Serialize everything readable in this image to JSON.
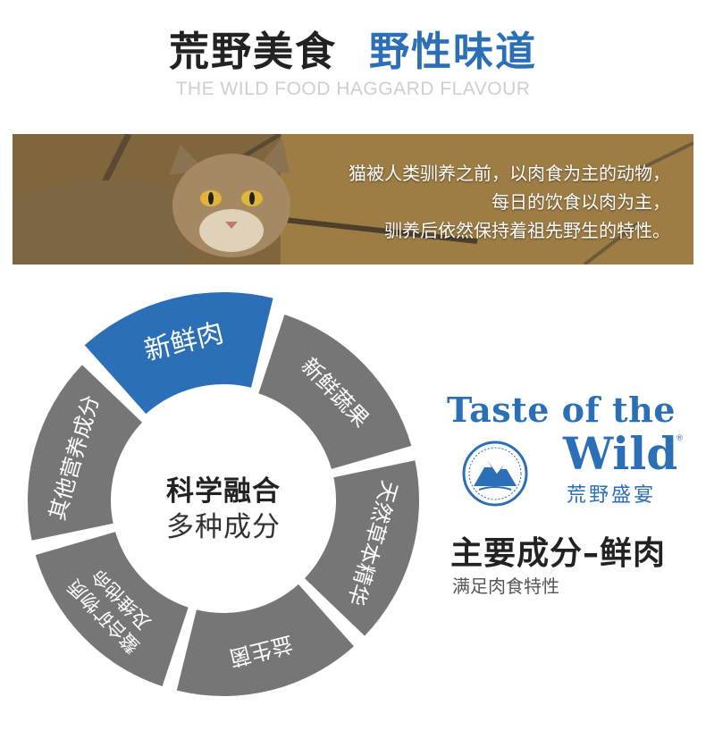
{
  "header": {
    "title_dark": "荒野美食",
    "title_blue": "野性味道",
    "subtitle": "THE WILD FOOD HAGGARD FLAVOUR"
  },
  "banner": {
    "line1": "猫被人类驯养之前，以肉食为主的动物，",
    "line2": "每日的饮食以肉为主，",
    "line3": "驯养后依然保持着祖先野生的特性。"
  },
  "ring": {
    "segments": [
      {
        "label": "新鲜肉"
      },
      {
        "label": "新鲜蔬果"
      },
      {
        "label": "天然草本精华"
      },
      {
        "label": "益生菌"
      },
      {
        "label": "螯合矿物质及维他命"
      },
      {
        "label": "其他营养成分"
      }
    ],
    "center_line1": "科学融合",
    "center_line2": "多种成分"
  },
  "brand": {
    "line1": "Taste of the",
    "line2": "Wild",
    "registered": "®",
    "chinese_name": "荒野盛宴"
  },
  "info": {
    "main_ingredient": "主要成分–鲜肉",
    "sub_text": "满足肉食特性"
  },
  "colors": {
    "accent_blue": "#2b6fb6",
    "ring_gray": "#767676",
    "ring_highlight": "#2b6fb6"
  }
}
